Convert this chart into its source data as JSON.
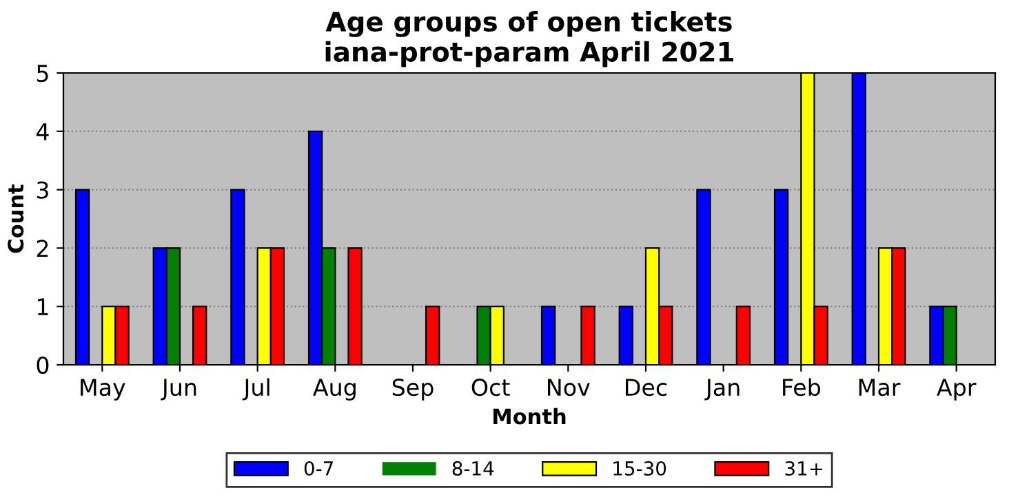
{
  "chart_data": {
    "type": "bar",
    "title": "Age groups of open tickets\niana-prot-param April 2021",
    "xlabel": "Month",
    "ylabel": "Count",
    "categories": [
      "May",
      "Jun",
      "Jul",
      "Aug",
      "Sep",
      "Oct",
      "Nov",
      "Dec",
      "Jan",
      "Feb",
      "Mar",
      "Apr"
    ],
    "series": [
      {
        "name": "0-7",
        "color": "#0000ff",
        "values": [
          3,
          2,
          3,
          4,
          0,
          0,
          1,
          1,
          3,
          3,
          5,
          1
        ]
      },
      {
        "name": "8-14",
        "color": "#008000",
        "values": [
          0,
          2,
          0,
          2,
          0,
          1,
          0,
          0,
          0,
          0,
          0,
          1
        ]
      },
      {
        "name": "15-30",
        "color": "#ffff00",
        "values": [
          1,
          0,
          2,
          0,
          0,
          1,
          0,
          2,
          0,
          5,
          2,
          0
        ]
      },
      {
        "name": "31+",
        "color": "#ff0000",
        "values": [
          1,
          1,
          2,
          2,
          1,
          0,
          1,
          1,
          1,
          1,
          2,
          0
        ]
      }
    ],
    "ylim": [
      0,
      5
    ],
    "yticks": [
      0,
      1,
      2,
      3,
      4,
      5
    ],
    "grid": "y",
    "legend": "bottom"
  }
}
